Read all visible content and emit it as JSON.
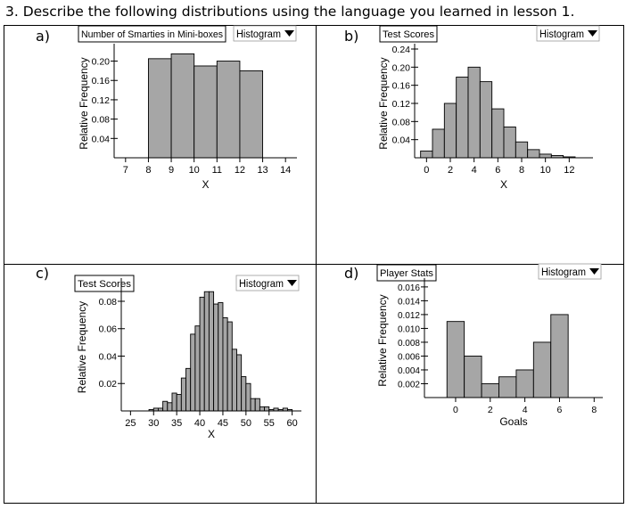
{
  "question": "3. Describe the following distributions using the language you learned in lesson 1.",
  "panel_labels": [
    "a)",
    "b)",
    "c)",
    "d)"
  ],
  "dropdown_label": "Histogram",
  "chart_data": [
    {
      "type": "bar",
      "title": "Number of Smarties in Mini-boxes",
      "xlabel": "X",
      "ylabel": "Relative Frequency",
      "xlim": [
        6.5,
        14.5
      ],
      "ylim": [
        0,
        0.225
      ],
      "xticks": [
        7,
        8,
        9,
        10,
        11,
        12,
        13,
        14
      ],
      "yticks": [
        0.04,
        0.08,
        0.12,
        0.16,
        0.2
      ],
      "ytick_labels": [
        "0.04",
        "0.08",
        "0.12",
        "0.16",
        "0.20"
      ],
      "bins": [
        [
          8,
          9
        ],
        [
          9,
          10
        ],
        [
          10,
          11
        ],
        [
          11,
          12
        ],
        [
          12,
          13
        ]
      ],
      "values": [
        0.205,
        0.215,
        0.19,
        0.2,
        0.18
      ]
    },
    {
      "type": "bar",
      "title": "Test Scores",
      "xlabel": "X",
      "ylabel": "Relative Frequency",
      "xlim": [
        -1,
        14
      ],
      "ylim": [
        0,
        0.24
      ],
      "xticks": [
        0,
        2,
        4,
        6,
        8,
        10,
        12
      ],
      "yticks": [
        0.04,
        0.08,
        0.12,
        0.16,
        0.2,
        0.24
      ],
      "ytick_labels": [
        "0.04",
        "0.08",
        "0.12",
        "0.16",
        "0.20",
        "0.24"
      ],
      "bins": [
        [
          -0.5,
          0.5
        ],
        [
          0.5,
          1.5
        ],
        [
          1.5,
          2.5
        ],
        [
          2.5,
          3.5
        ],
        [
          3.5,
          4.5
        ],
        [
          4.5,
          5.5
        ],
        [
          5.5,
          6.5
        ],
        [
          6.5,
          7.5
        ],
        [
          7.5,
          8.5
        ],
        [
          8.5,
          9.5
        ],
        [
          9.5,
          10.5
        ],
        [
          10.5,
          11.5
        ],
        [
          11.5,
          12.5
        ]
      ],
      "values": [
        0.015,
        0.063,
        0.12,
        0.178,
        0.2,
        0.168,
        0.108,
        0.068,
        0.035,
        0.018,
        0.008,
        0.005,
        0.002
      ]
    },
    {
      "type": "bar",
      "title": "Test Scores",
      "xlabel": "X",
      "ylabel": "Relative Frequency",
      "xlim": [
        23,
        62
      ],
      "ylim": [
        0,
        0.093
      ],
      "xticks": [
        25,
        30,
        35,
        40,
        45,
        50,
        55,
        60
      ],
      "yticks": [
        0.02,
        0.04,
        0.06,
        0.08
      ],
      "ytick_labels": [
        "0.02",
        "0.04",
        "0.06",
        "0.08"
      ],
      "bins": [
        [
          29,
          30
        ],
        [
          30,
          31
        ],
        [
          31,
          32
        ],
        [
          32,
          33
        ],
        [
          33,
          34
        ],
        [
          34,
          35
        ],
        [
          35,
          36
        ],
        [
          36,
          37
        ],
        [
          37,
          38
        ],
        [
          38,
          39
        ],
        [
          39,
          40
        ],
        [
          40,
          41
        ],
        [
          41,
          42
        ],
        [
          42,
          43
        ],
        [
          43,
          44
        ],
        [
          44,
          45
        ],
        [
          45,
          46
        ],
        [
          46,
          47
        ],
        [
          47,
          48
        ],
        [
          48,
          49
        ],
        [
          49,
          50
        ],
        [
          50,
          51
        ],
        [
          51,
          52
        ],
        [
          52,
          53
        ],
        [
          53,
          54
        ],
        [
          54,
          55
        ],
        [
          55,
          56
        ],
        [
          56,
          57
        ],
        [
          57,
          58
        ],
        [
          58,
          59
        ],
        [
          59,
          60
        ]
      ],
      "values": [
        0.001,
        0.002,
        0.002,
        0.007,
        0.006,
        0.013,
        0.012,
        0.024,
        0.031,
        0.056,
        0.062,
        0.083,
        0.087,
        0.087,
        0.078,
        0.079,
        0.068,
        0.065,
        0.045,
        0.041,
        0.025,
        0.02,
        0.009,
        0.009,
        0.003,
        0.003,
        0.001,
        0.002,
        0.001,
        0.002,
        0.001
      ]
    },
    {
      "type": "bar",
      "title": "Player Stats",
      "xlabel": "Goals",
      "ylabel": "Relative Frequency",
      "xlim": [
        -1.8,
        8.5
      ],
      "ylim": [
        0,
        0.0165
      ],
      "xticks": [
        0,
        2,
        4,
        6,
        8
      ],
      "yticks": [
        0.002,
        0.004,
        0.006,
        0.008,
        0.01,
        0.012,
        0.014,
        0.016
      ],
      "ytick_labels": [
        "0.002",
        "0.004",
        "0.006",
        "0.008",
        "0.010",
        "0.012",
        "0.014",
        "0.016"
      ],
      "bins": [
        [
          -0.5,
          0.5
        ],
        [
          0.5,
          1.5
        ],
        [
          1.5,
          2.5
        ],
        [
          2.5,
          3.5
        ],
        [
          3.5,
          4.5
        ],
        [
          4.5,
          5.5
        ],
        [
          5.5,
          6.5
        ]
      ],
      "values": [
        0.011,
        0.006,
        0.002,
        0.003,
        0.004,
        0.008,
        0.012
      ]
    }
  ]
}
